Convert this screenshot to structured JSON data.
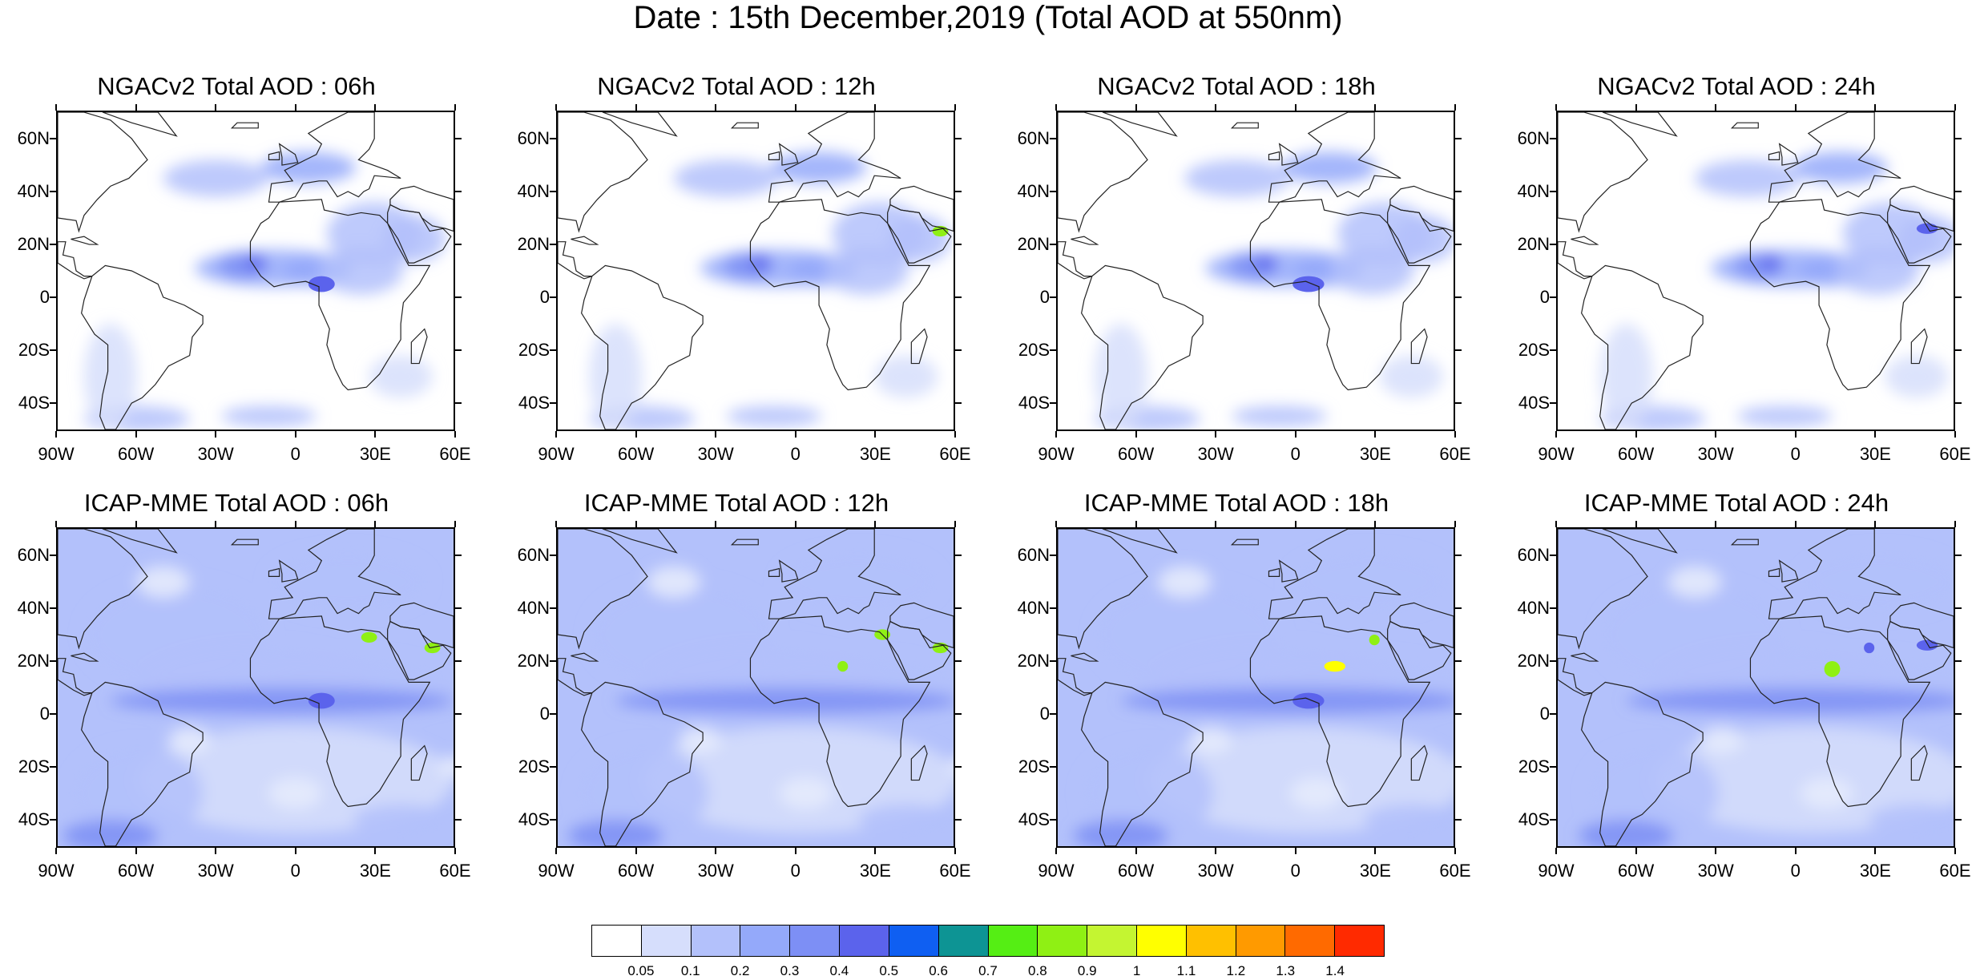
{
  "figure": {
    "title": "Date : 15th December,2019 (Total AOD at 550nm)"
  },
  "axes": {
    "lat_labels": [
      "60N",
      "40N",
      "20N",
      "0",
      "20S",
      "40S"
    ],
    "lat_values": [
      60,
      40,
      20,
      0,
      -20,
      -40
    ],
    "lon_labels": [
      "90W",
      "60W",
      "30W",
      "0",
      "30E",
      "60E"
    ],
    "lon_values": [
      -90,
      -60,
      -30,
      0,
      30,
      60
    ],
    "lat_range": [
      -50,
      70
    ],
    "lon_range": [
      -90,
      60
    ]
  },
  "panels": [
    {
      "title": "NGACv2 Total AOD : 06h",
      "model": "NGACv2",
      "hour": "06h",
      "variant": 0
    },
    {
      "title": "NGACv2 Total AOD : 12h",
      "model": "NGACv2",
      "hour": "12h",
      "variant": 1
    },
    {
      "title": "NGACv2 Total AOD : 18h",
      "model": "NGACv2",
      "hour": "18h",
      "variant": 2
    },
    {
      "title": "NGACv2 Total AOD : 24h",
      "model": "NGACv2",
      "hour": "24h",
      "variant": 3
    },
    {
      "title": "ICAP-MME Total AOD : 06h",
      "model": "ICAP-MME",
      "hour": "06h",
      "variant": 0
    },
    {
      "title": "ICAP-MME Total AOD : 12h",
      "model": "ICAP-MME",
      "hour": "12h",
      "variant": 1
    },
    {
      "title": "ICAP-MME Total AOD : 18h",
      "model": "ICAP-MME",
      "hour": "18h",
      "variant": 2
    },
    {
      "title": "ICAP-MME Total AOD : 24h",
      "model": "ICAP-MME",
      "hour": "24h",
      "variant": 3
    }
  ],
  "colorbar": {
    "levels": [
      "0.05",
      "0.1",
      "0.2",
      "0.3",
      "0.4",
      "0.5",
      "0.6",
      "0.7",
      "0.8",
      "0.9",
      "1",
      "1.1",
      "1.2",
      "1.3",
      "1.4"
    ],
    "colors": [
      "#ffffff",
      "#d6defc",
      "#b3c1fb",
      "#94a9fa",
      "#7d8ff5",
      "#5b63ec",
      "#0f5ff2",
      "#0d9494",
      "#55ee14",
      "#8ff014",
      "#c4f531",
      "#ffff00",
      "#ffc000",
      "#ff9a00",
      "#ff6a00",
      "#ff2a00"
    ]
  }
}
